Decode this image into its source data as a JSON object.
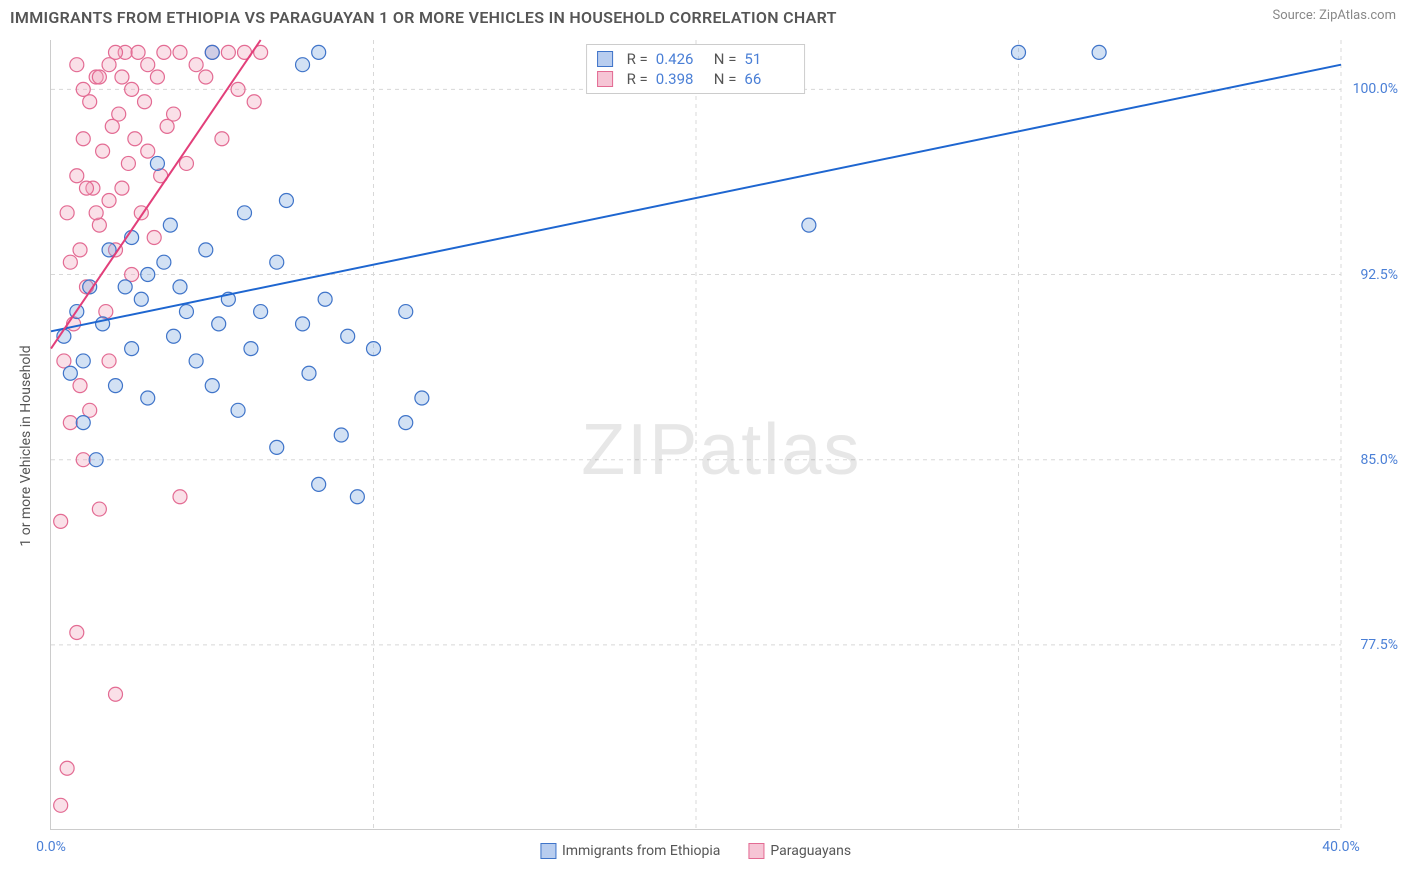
{
  "header": {
    "title": "IMMIGRANTS FROM ETHIOPIA VS PARAGUAYAN 1 OR MORE VEHICLES IN HOUSEHOLD CORRELATION CHART",
    "source": "Source: ZipAtlas.com"
  },
  "yaxis": {
    "label": "1 or more Vehicles in Household"
  },
  "watermark": {
    "text_bold": "ZIP",
    "text_thin": "atlas"
  },
  "chart": {
    "type": "scatter",
    "background_color": "#ffffff",
    "grid_color": "#d8d8d8",
    "grid_dash": "4,4",
    "axis_color": "#cccccc",
    "tick_label_color": "#4a7fd6",
    "tick_fontsize": 14,
    "xlim": [
      0,
      40
    ],
    "ylim": [
      70,
      102
    ],
    "x_ticks": [
      0,
      10,
      20,
      30,
      40
    ],
    "x_tick_labels_visible": {
      "0": "0.0%",
      "40": "40.0%"
    },
    "y_ticks": [
      77.5,
      85.0,
      92.5,
      100.0
    ],
    "y_tick_labels": [
      "77.5%",
      "85.0%",
      "92.5%",
      "100.0%"
    ],
    "marker_radius": 7,
    "marker_fill_opacity": 0.35,
    "marker_stroke_width": 1.2,
    "line_width": 2,
    "series": [
      {
        "name": "Immigrants from Ethiopia",
        "color_fill": "#7fa8e0",
        "color_stroke": "#3f74c9",
        "line_color": "#1e66d0",
        "R": 0.426,
        "N": 51,
        "trend": {
          "x1": 0,
          "y1": 90.2,
          "x2": 40,
          "y2": 101.0
        },
        "points": [
          [
            0.4,
            90.0
          ],
          [
            0.6,
            88.5
          ],
          [
            0.8,
            91.0
          ],
          [
            1.0,
            86.5
          ],
          [
            1.0,
            89.0
          ],
          [
            1.2,
            92.0
          ],
          [
            1.4,
            85.0
          ],
          [
            1.6,
            90.5
          ],
          [
            1.8,
            93.5
          ],
          [
            2.0,
            88.0
          ],
          [
            2.3,
            92.0
          ],
          [
            2.5,
            94.0
          ],
          [
            2.5,
            89.5
          ],
          [
            2.8,
            91.5
          ],
          [
            3.0,
            92.5
          ],
          [
            3.0,
            87.5
          ],
          [
            3.3,
            97.0
          ],
          [
            3.5,
            93.0
          ],
          [
            3.7,
            94.5
          ],
          [
            3.8,
            90.0
          ],
          [
            4.0,
            92.0
          ],
          [
            4.2,
            91.0
          ],
          [
            4.5,
            89.0
          ],
          [
            4.8,
            93.5
          ],
          [
            5.0,
            101.5
          ],
          [
            5.0,
            88.0
          ],
          [
            5.2,
            90.5
          ],
          [
            5.5,
            91.5
          ],
          [
            5.8,
            87.0
          ],
          [
            6.0,
            95.0
          ],
          [
            6.2,
            89.5
          ],
          [
            6.5,
            91.0
          ],
          [
            7.0,
            93.0
          ],
          [
            7.0,
            85.5
          ],
          [
            7.3,
            95.5
          ],
          [
            7.8,
            90.5
          ],
          [
            7.8,
            101.0
          ],
          [
            8.0,
            88.5
          ],
          [
            8.3,
            84.0
          ],
          [
            8.5,
            91.5
          ],
          [
            9.0,
            86.0
          ],
          [
            9.2,
            90.0
          ],
          [
            9.5,
            83.5
          ],
          [
            10.0,
            89.5
          ],
          [
            11.0,
            86.5
          ],
          [
            11.0,
            91.0
          ],
          [
            11.5,
            87.5
          ],
          [
            23.5,
            94.5
          ],
          [
            30.0,
            101.5
          ],
          [
            32.5,
            101.5
          ],
          [
            8.3,
            101.5
          ]
        ]
      },
      {
        "name": "Paraguayans",
        "color_fill": "#f2a7bd",
        "color_stroke": "#e36b93",
        "line_color": "#e23f7a",
        "R": 0.398,
        "N": 66,
        "trend": {
          "x1": 0,
          "y1": 89.5,
          "x2": 6.5,
          "y2": 102.0
        },
        "points": [
          [
            0.3,
            82.5
          ],
          [
            0.3,
            71.0
          ],
          [
            0.4,
            89.0
          ],
          [
            0.5,
            95.0
          ],
          [
            0.5,
            72.5
          ],
          [
            0.6,
            93.0
          ],
          [
            0.7,
            90.5
          ],
          [
            0.8,
            78.0
          ],
          [
            0.8,
            96.5
          ],
          [
            0.9,
            88.0
          ],
          [
            1.0,
            98.0
          ],
          [
            1.0,
            85.0
          ],
          [
            1.1,
            92.0
          ],
          [
            1.2,
            99.5
          ],
          [
            1.2,
            87.0
          ],
          [
            1.3,
            96.0
          ],
          [
            1.4,
            100.5
          ],
          [
            1.5,
            94.5
          ],
          [
            1.5,
            83.0
          ],
          [
            1.6,
            97.5
          ],
          [
            1.7,
            91.0
          ],
          [
            1.8,
            101.0
          ],
          [
            1.8,
            95.5
          ],
          [
            1.9,
            98.5
          ],
          [
            2.0,
            93.5
          ],
          [
            2.0,
            75.5
          ],
          [
            2.1,
            99.0
          ],
          [
            2.2,
            96.0
          ],
          [
            2.3,
            101.5
          ],
          [
            2.4,
            97.0
          ],
          [
            2.5,
            100.0
          ],
          [
            2.5,
            92.5
          ],
          [
            2.6,
            98.0
          ],
          [
            2.7,
            101.5
          ],
          [
            2.8,
            95.0
          ],
          [
            2.9,
            99.5
          ],
          [
            3.0,
            97.5
          ],
          [
            3.0,
            101.0
          ],
          [
            3.2,
            94.0
          ],
          [
            3.3,
            100.5
          ],
          [
            3.4,
            96.5
          ],
          [
            3.5,
            101.5
          ],
          [
            3.6,
            98.5
          ],
          [
            3.8,
            99.0
          ],
          [
            4.0,
            101.5
          ],
          [
            4.0,
            83.5
          ],
          [
            4.2,
            97.0
          ],
          [
            4.5,
            101.0
          ],
          [
            4.8,
            100.5
          ],
          [
            5.0,
            101.5
          ],
          [
            5.3,
            98.0
          ],
          [
            5.5,
            101.5
          ],
          [
            5.8,
            100.0
          ],
          [
            6.0,
            101.5
          ],
          [
            6.3,
            99.5
          ],
          [
            6.5,
            101.5
          ],
          [
            1.5,
            100.5
          ],
          [
            1.0,
            100.0
          ],
          [
            0.8,
            101.0
          ],
          [
            2.2,
            100.5
          ],
          [
            2.0,
            101.5
          ],
          [
            1.4,
            95.0
          ],
          [
            1.8,
            89.0
          ],
          [
            0.6,
            86.5
          ],
          [
            1.1,
            96.0
          ],
          [
            0.9,
            93.5
          ]
        ]
      }
    ]
  },
  "bottom_legend": {
    "items": [
      {
        "label": "Immigrants from Ethiopia",
        "fill": "#b8cdef",
        "stroke": "#3f74c9"
      },
      {
        "label": "Paraguayans",
        "fill": "#f6c5d5",
        "stroke": "#e36b93"
      }
    ]
  },
  "stat_legend": {
    "rows": [
      {
        "fill": "#b8cdef",
        "stroke": "#3f74c9",
        "r_label": "R =",
        "r_val": "0.426",
        "n_label": "N =",
        "n_val": "51"
      },
      {
        "fill": "#f6c5d5",
        "stroke": "#e36b93",
        "r_label": "R =",
        "r_val": "0.398",
        "n_label": "N =",
        "n_val": "66"
      }
    ]
  }
}
